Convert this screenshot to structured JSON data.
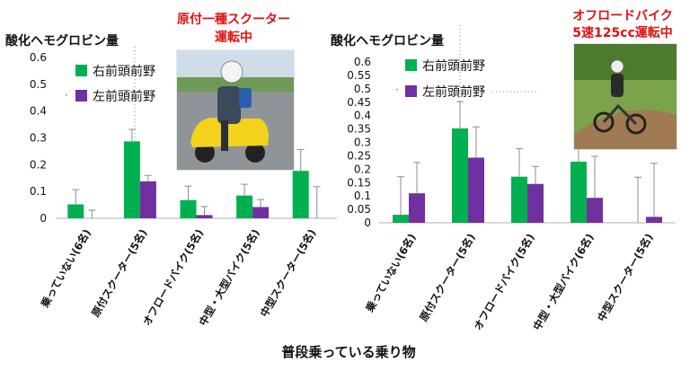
{
  "figure": {
    "xlabel": "普段乗っている乗り物",
    "legend": [
      "右前頭前野",
      "左前頭前野"
    ]
  },
  "photos": [
    {
      "caption_lines": [
        "原付一種スクーター",
        "運転中"
      ],
      "subject": "scooter-rider-photo"
    },
    {
      "caption_lines": [
        "オフロードバイク",
        "5速125cc運転中"
      ],
      "subject": "offroad-rider-photo"
    }
  ],
  "colors": {
    "right": "#00b050",
    "left": "#7030a0",
    "caption": "#e01010"
  },
  "chart_data": [
    {
      "type": "bar",
      "title": "",
      "ylabel": "酸化ヘモグロビン量",
      "xlabel": "普段乗っている乗り物",
      "ylim": [
        0,
        0.6
      ],
      "yticks": [
        "0",
        "0.1",
        "0.2",
        "0.3",
        "0.4",
        "0.5",
        "0.6"
      ],
      "categories": [
        "乗っていない(6名)",
        "原付スクーター(5名)",
        "オフロードバイク(5名)",
        "中型・大型バイク(5名)",
        "中型スクーター(5名)"
      ],
      "series": [
        {
          "name": "右前頭前野",
          "values": [
            0.052,
            0.287,
            0.068,
            0.085,
            0.177
          ],
          "error": [
            0.055,
            0.045,
            0.052,
            0.042,
            0.08
          ]
        },
        {
          "name": "左前頭前野",
          "values": [
            0.0,
            0.138,
            0.012,
            0.042,
            0.0
          ],
          "error": [
            0.03,
            0.022,
            0.032,
            0.028,
            0.118
          ]
        }
      ]
    },
    {
      "type": "bar",
      "title": "",
      "ylabel": "酸化ヘモグロビン量",
      "xlabel": "普段乗っている乗り物",
      "ylim": [
        0,
        0.6
      ],
      "yticks": [
        "0",
        "0.05",
        "0.1",
        "0.15",
        "0.2",
        "0.25",
        "0.3",
        "0.35",
        "0.4",
        "0.45",
        "0.5",
        "0.55",
        "0.6"
      ],
      "categories": [
        "乗っていない(6名)",
        "原付スクーター(5名)",
        "オフロードバイク(5名)",
        "中型・大型バイク(6名)",
        "中型スクーター(5名)"
      ],
      "series": [
        {
          "name": "右前頭前野",
          "values": [
            0.03,
            0.352,
            0.172,
            0.228,
            0.0
          ],
          "error": [
            0.142,
            0.1,
            0.105,
            0.065,
            0.17
          ]
        },
        {
          "name": "左前頭前野",
          "values": [
            0.11,
            0.243,
            0.145,
            0.093,
            0.022
          ],
          "error": [
            0.115,
            0.115,
            0.065,
            0.155,
            0.2
          ]
        }
      ]
    }
  ]
}
